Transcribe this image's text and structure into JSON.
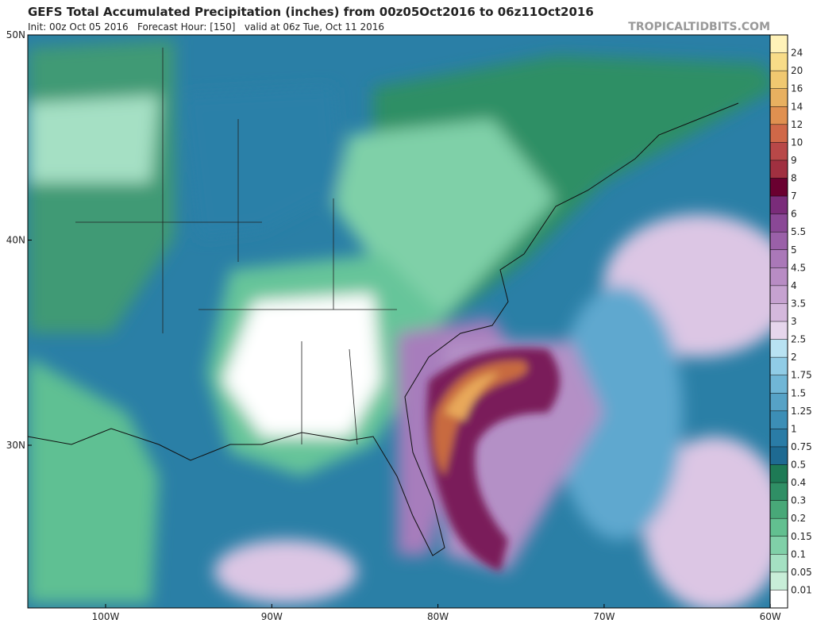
{
  "header": {
    "title": "GEFS Total Accumulated Precipitation (inches) from 00z05Oct2016 to 06z11Oct2016",
    "subtitle": "Init: 00z Oct 05 2016   Forecast Hour: [150]   valid at 06z Tue, Oct 11 2016",
    "watermark": "TROPICALTIDBITS.COM"
  },
  "map": {
    "lat_labels": [
      "50N",
      "40N",
      "30N"
    ],
    "lon_labels": [
      "100W",
      "90W",
      "80W",
      "70W",
      "60W"
    ]
  },
  "colorbar": {
    "labels": [
      "24",
      "20",
      "16",
      "14",
      "12",
      "10",
      "9",
      "8",
      "7",
      "6",
      "5.5",
      "5",
      "4.5",
      "4",
      "3.5",
      "3",
      "2.5",
      "2",
      "1.75",
      "1.5",
      "1.25",
      "1",
      "0.75",
      "0.5",
      "0.4",
      "0.3",
      "0.2",
      "0.15",
      "0.1",
      "0.05",
      "0.01"
    ]
  }
}
